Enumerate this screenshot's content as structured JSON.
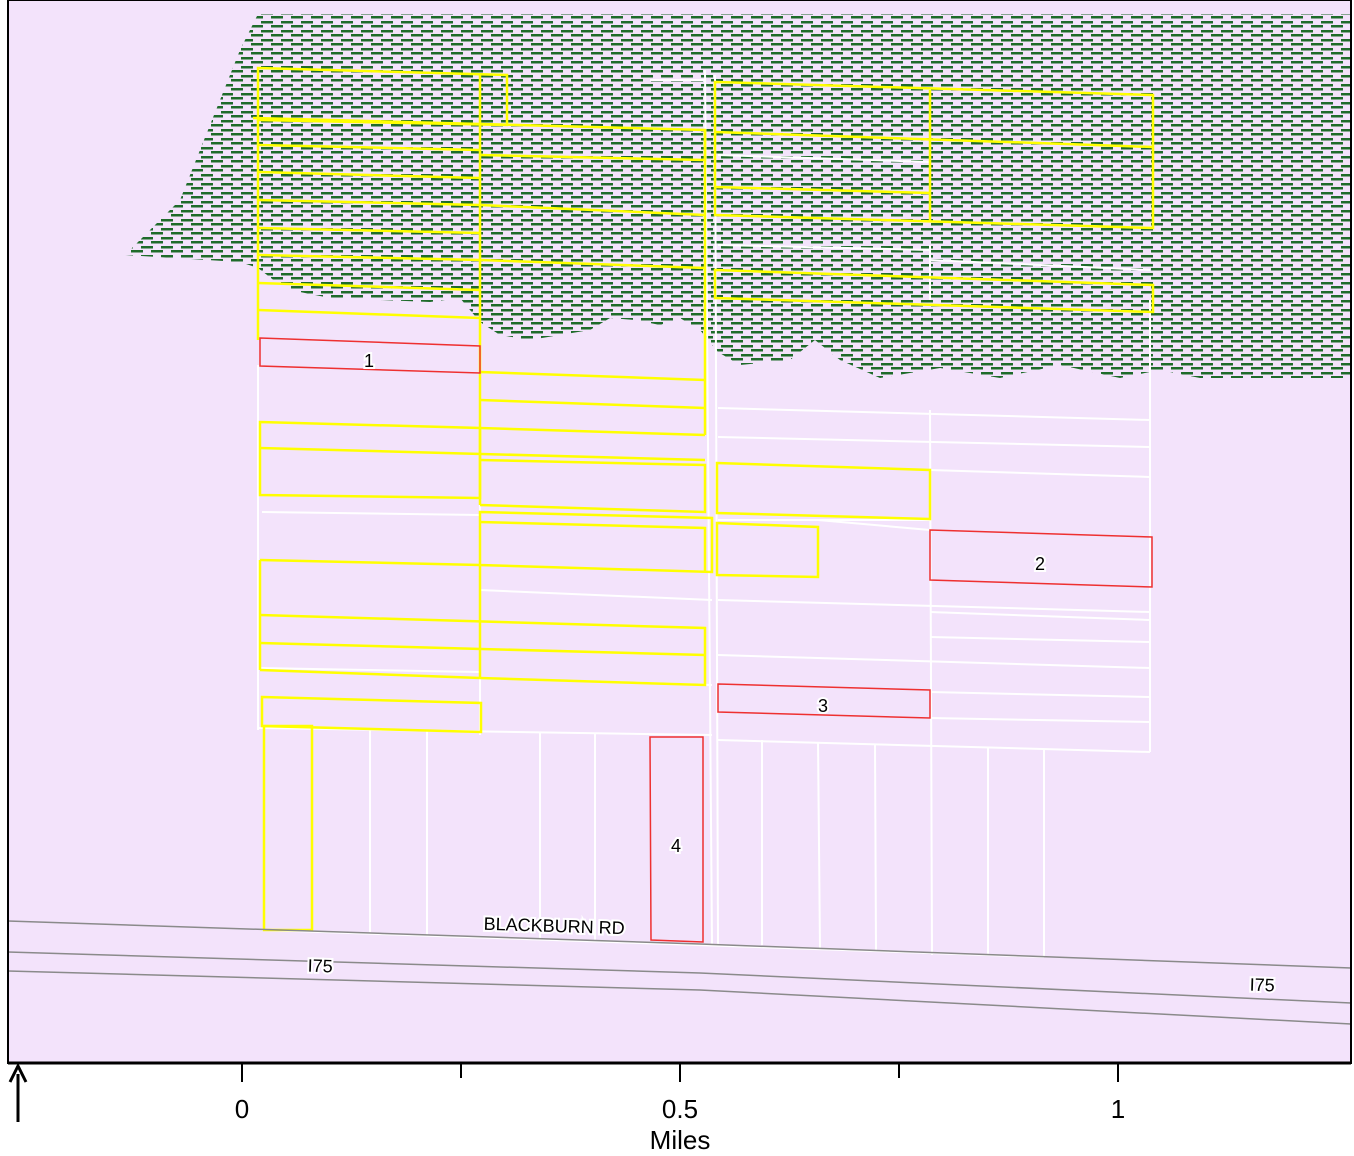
{
  "colors": {
    "background": "#f3e3fb",
    "hatch": "#1e6b2a",
    "parcel_outline": "#ffffff",
    "highlight_yellow": "#ffff00",
    "highlight_red": "#ee3030",
    "road_line": "#8a8a8a",
    "frame": "#000000"
  },
  "parcels": {
    "p1": "1",
    "p2": "2",
    "p3": "3",
    "p4": "4"
  },
  "roads": {
    "blackburn": "BLACKBURN RD",
    "i75_left": "I75",
    "i75_right": "I75"
  },
  "scale_bar": {
    "ticks": [
      "0",
      "0.5",
      "1"
    ],
    "unit": "Miles"
  },
  "north_arrow": {
    "icon": "north-arrow-icon"
  }
}
